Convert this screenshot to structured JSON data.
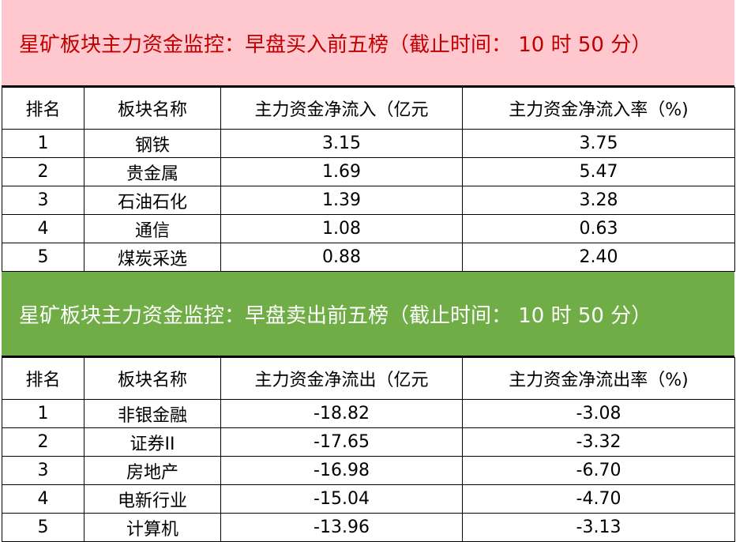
{
  "buy": {
    "title": "星矿板块主力资金监控：早盘买入前五榜（截止时间： 10 时 50 分）",
    "color": "#FFC7CE",
    "headers": [
      "排名",
      "板块名称",
      "主力资金净流入（亿元",
      "主力资金净流入率（%)"
    ],
    "rows": [
      [
        "1",
        "钢铁",
        "3.15",
        "3.75"
      ],
      [
        "2",
        "贵金属",
        "1.69",
        "5.47"
      ],
      [
        "3",
        "石油石化",
        "1.39",
        "3.28"
      ],
      [
        "4",
        "通信",
        "1.08",
        "0.63"
      ],
      [
        "5",
        "煤炭采选",
        "0.88",
        "2.40"
      ]
    ]
  },
  "sell": {
    "title": "星矿板块主力资金监控：早盘卖出前五榜（截止时间： 10 时 50 分）",
    "color": "#70AD47",
    "headers": [
      "排名",
      "板块名称",
      "主力资金净流出（亿元",
      "主力资金净流出率（%)"
    ],
    "rows": [
      [
        "1",
        "非银金融",
        "-18.82",
        "-3.08"
      ],
      [
        "2",
        "证券II",
        "-17.65",
        "-3.32"
      ],
      [
        "3",
        "房地产",
        "-16.98",
        "-6.70"
      ],
      [
        "4",
        "电新行业",
        "-15.04",
        "-4.70"
      ],
      [
        "5",
        "计算机",
        "-13.96",
        "-3.13"
      ]
    ]
  }
}
